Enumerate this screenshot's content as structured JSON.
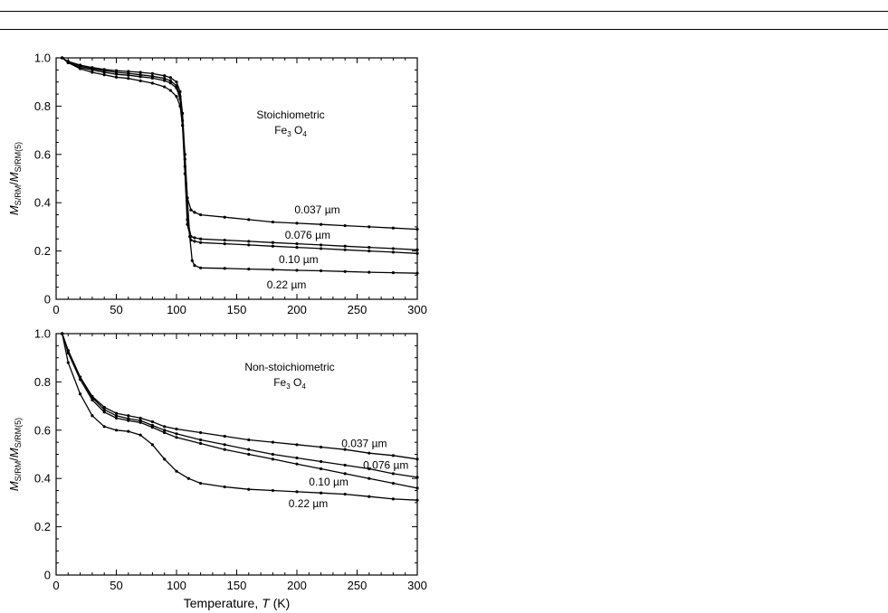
{
  "chart_data": [
    {
      "type": "line",
      "title": "",
      "annotation": {
        "line1": "Stoichiometric",
        "line2_main": "Fe",
        "line2_sub1": "3",
        "line2_main2": " O",
        "line2_sub2": "4"
      },
      "xlabel": "",
      "ylabel": {
        "m1": "M",
        "s1": "S/RM",
        "slash": "/",
        "m2": "M",
        "s2": "S/RM(5)"
      },
      "xlim": [
        0,
        300
      ],
      "ylim": [
        0,
        1.0
      ],
      "xticks": [
        "0",
        "50",
        "100",
        "150",
        "200",
        "250",
        "300"
      ],
      "yticks": [
        "0",
        "0.2",
        "0.4",
        "0.6",
        "0.8",
        "1.0"
      ],
      "series": [
        {
          "name": "0.037 µm",
          "x": [
            5,
            10,
            20,
            30,
            40,
            50,
            60,
            70,
            80,
            90,
            95,
            100,
            103,
            105,
            107,
            109,
            112,
            115,
            120,
            140,
            160,
            180,
            200,
            220,
            240,
            260,
            280,
            300
          ],
          "values": [
            1.0,
            0.985,
            0.97,
            0.96,
            0.952,
            0.947,
            0.944,
            0.94,
            0.935,
            0.926,
            0.918,
            0.9,
            0.86,
            0.77,
            0.6,
            0.42,
            0.37,
            0.36,
            0.35,
            0.34,
            0.33,
            0.32,
            0.315,
            0.31,
            0.305,
            0.3,
            0.295,
            0.29
          ]
        },
        {
          "name": "0.076 µm",
          "x": [
            5,
            10,
            20,
            30,
            40,
            50,
            60,
            70,
            80,
            90,
            95,
            100,
            103,
            105,
            107,
            109,
            112,
            115,
            120,
            140,
            160,
            180,
            200,
            220,
            240,
            260,
            280,
            300
          ],
          "values": [
            1.0,
            0.985,
            0.965,
            0.955,
            0.947,
            0.94,
            0.936,
            0.93,
            0.924,
            0.915,
            0.905,
            0.885,
            0.84,
            0.74,
            0.55,
            0.33,
            0.26,
            0.255,
            0.25,
            0.245,
            0.24,
            0.235,
            0.23,
            0.225,
            0.22,
            0.215,
            0.21,
            0.205
          ]
        },
        {
          "name": "0.10 µm",
          "x": [
            5,
            10,
            20,
            30,
            40,
            50,
            60,
            70,
            80,
            90,
            95,
            100,
            103,
            105,
            107,
            109,
            112,
            115,
            120,
            140,
            160,
            180,
            200,
            220,
            240,
            260,
            280,
            300
          ],
          "values": [
            1.0,
            0.98,
            0.96,
            0.95,
            0.94,
            0.932,
            0.928,
            0.922,
            0.916,
            0.906,
            0.896,
            0.875,
            0.83,
            0.72,
            0.52,
            0.31,
            0.245,
            0.24,
            0.235,
            0.23,
            0.225,
            0.22,
            0.215,
            0.21,
            0.205,
            0.2,
            0.195,
            0.19
          ]
        },
        {
          "name": "0.22 µm",
          "x": [
            5,
            10,
            20,
            30,
            40,
            50,
            60,
            70,
            80,
            90,
            95,
            100,
            103,
            105,
            107,
            109,
            111,
            113,
            115,
            120,
            140,
            160,
            180,
            200,
            220,
            240,
            260,
            280,
            300
          ],
          "values": [
            1.0,
            0.98,
            0.955,
            0.94,
            0.93,
            0.92,
            0.915,
            0.905,
            0.895,
            0.88,
            0.865,
            0.84,
            0.8,
            0.72,
            0.58,
            0.42,
            0.26,
            0.16,
            0.14,
            0.13,
            0.128,
            0.125,
            0.123,
            0.12,
            0.118,
            0.115,
            0.112,
            0.11,
            0.108
          ]
        }
      ],
      "curve_labels": [
        {
          "series": "0.037 µm",
          "num": "0.037",
          "unit": "µm",
          "at_x": 198,
          "at_y": 0.37
        },
        {
          "series": "0.076 µm",
          "num": "0.076",
          "unit": "µm",
          "at_x": 190,
          "at_y": 0.265
        },
        {
          "series": "0.10 µm",
          "num": "0.10",
          "unit": "µm",
          "at_x": 185,
          "at_y": 0.165
        },
        {
          "series": "0.22 µm",
          "num": "0.22",
          "unit": "µm",
          "at_x": 175,
          "at_y": 0.06
        }
      ]
    },
    {
      "type": "line",
      "title": "",
      "annotation": {
        "line1": "Non-stoichiometric",
        "line2_main": "Fe",
        "line2_sub1": "3",
        "line2_main2": " O",
        "line2_sub2": "4"
      },
      "xlabel": {
        "text": "Temperature, ",
        "var": "T",
        "unit": " (K)"
      },
      "ylabel": {
        "m1": "M",
        "s1": "S/RM",
        "slash": "/",
        "m2": "M",
        "s2": "S/RM(5)"
      },
      "xlim": [
        0,
        300
      ],
      "ylim": [
        0,
        1.0
      ],
      "xticks": [
        "0",
        "50",
        "100",
        "150",
        "200",
        "250",
        "300"
      ],
      "yticks": [
        "0",
        "0.2",
        "0.4",
        "0.6",
        "0.8",
        "1.0"
      ],
      "series": [
        {
          "name": "0.037 µm",
          "x": [
            5,
            10,
            20,
            30,
            40,
            50,
            60,
            70,
            80,
            90,
            100,
            120,
            140,
            160,
            180,
            200,
            220,
            240,
            260,
            280,
            300
          ],
          "values": [
            1.0,
            0.93,
            0.82,
            0.74,
            0.695,
            0.67,
            0.66,
            0.65,
            0.635,
            0.615,
            0.605,
            0.59,
            0.575,
            0.56,
            0.55,
            0.54,
            0.53,
            0.52,
            0.505,
            0.495,
            0.48
          ]
        },
        {
          "name": "0.076 µm",
          "x": [
            5,
            10,
            20,
            30,
            40,
            50,
            60,
            70,
            80,
            90,
            100,
            120,
            140,
            160,
            180,
            200,
            220,
            240,
            260,
            280,
            300
          ],
          "values": [
            1.0,
            0.93,
            0.82,
            0.735,
            0.685,
            0.66,
            0.648,
            0.64,
            0.62,
            0.6,
            0.585,
            0.56,
            0.54,
            0.52,
            0.5,
            0.485,
            0.47,
            0.455,
            0.44,
            0.42,
            0.405
          ]
        },
        {
          "name": "0.10 µm",
          "x": [
            5,
            10,
            20,
            30,
            40,
            50,
            60,
            70,
            80,
            90,
            100,
            120,
            140,
            160,
            180,
            200,
            220,
            240,
            260,
            280,
            300
          ],
          "values": [
            1.0,
            0.92,
            0.81,
            0.725,
            0.675,
            0.65,
            0.64,
            0.632,
            0.612,
            0.59,
            0.57,
            0.545,
            0.52,
            0.5,
            0.48,
            0.46,
            0.44,
            0.42,
            0.4,
            0.38,
            0.36
          ]
        },
        {
          "name": "0.22 µm",
          "x": [
            5,
            10,
            20,
            30,
            40,
            50,
            60,
            70,
            80,
            90,
            100,
            110,
            120,
            140,
            160,
            180,
            200,
            220,
            240,
            260,
            280,
            300
          ],
          "values": [
            1.0,
            0.88,
            0.75,
            0.66,
            0.615,
            0.6,
            0.595,
            0.58,
            0.54,
            0.48,
            0.43,
            0.4,
            0.38,
            0.365,
            0.355,
            0.35,
            0.345,
            0.34,
            0.335,
            0.325,
            0.315,
            0.31
          ]
        }
      ],
      "curve_labels": [
        {
          "series": "0.037 µm",
          "num": "0.037",
          "unit": "µm",
          "at_x": 237,
          "at_y": 0.545
        },
        {
          "series": "0.076 µm",
          "num": "0.076",
          "unit": "µm",
          "at_x": 255,
          "at_y": 0.455
        },
        {
          "series": "0.10 µm",
          "num": "0.10",
          "unit": "µm",
          "at_x": 210,
          "at_y": 0.385
        },
        {
          "series": "0.22 µm",
          "num": "0.22",
          "unit": "µm",
          "at_x": 193,
          "at_y": 0.295
        }
      ]
    }
  ]
}
